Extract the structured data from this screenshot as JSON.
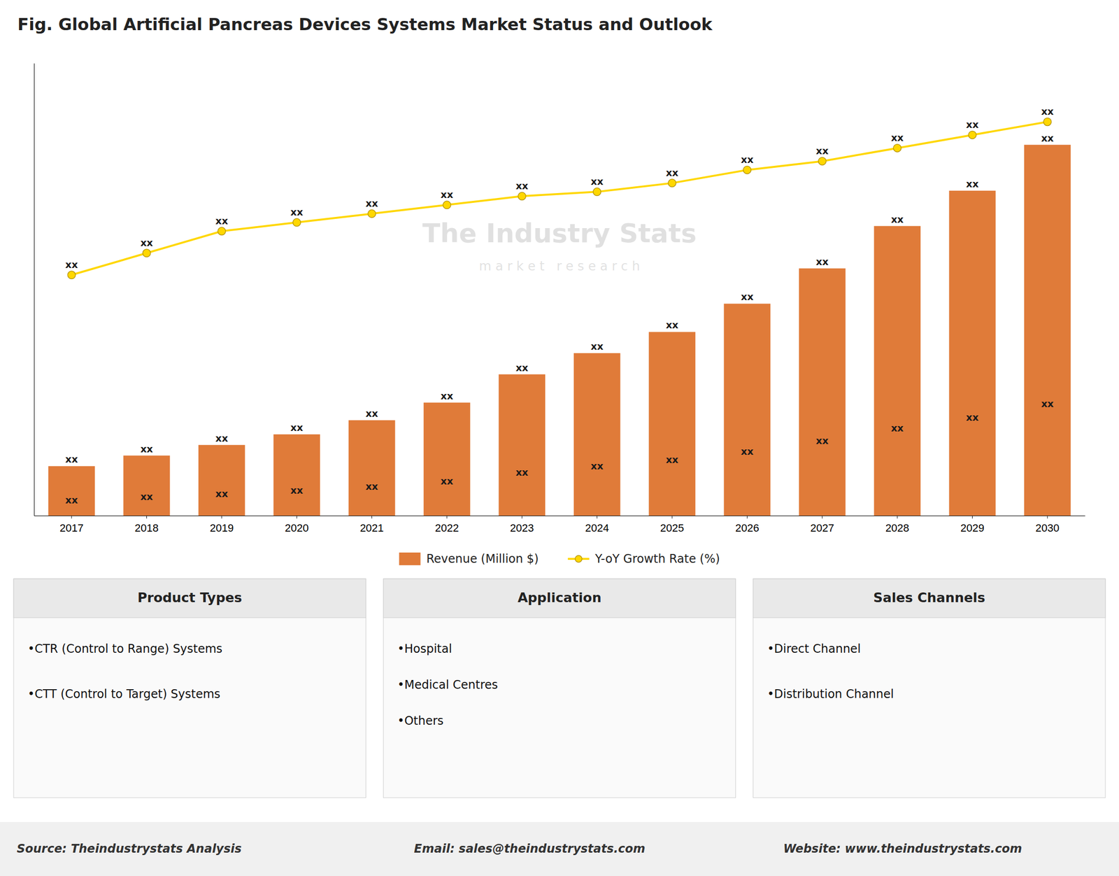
{
  "chart_data": {
    "type": "bar",
    "title": "Fig. Global Artificial Pancreas Devices Systems Market Status and Outlook",
    "categories": [
      "2017",
      "2018",
      "2019",
      "2020",
      "2021",
      "2022",
      "2023",
      "2024",
      "2025",
      "2026",
      "2027",
      "2028",
      "2029",
      "2030"
    ],
    "series": [
      {
        "name": "Revenue (Million $)",
        "type": "bar",
        "color": "#E07B39",
        "values": [
          14,
          17,
          20,
          23,
          27,
          32,
          40,
          46,
          52,
          60,
          70,
          82,
          92,
          105
        ],
        "value_labels": [
          "xx",
          "xx",
          "xx",
          "xx",
          "xx",
          "xx",
          "xx",
          "xx",
          "xx",
          "xx",
          "xx",
          "xx",
          "xx",
          "xx"
        ],
        "inner_labels": [
          "xx",
          "xx",
          "xx",
          "xx",
          "xx",
          "xx",
          "xx",
          "xx",
          "xx",
          "xx",
          "xx",
          "xx",
          "xx",
          "xx"
        ]
      },
      {
        "name": "Y-oY Growth Rate (%)",
        "type": "line",
        "color": "#FFD700",
        "marker": "circle",
        "line_style": "solid",
        "values": [
          68.145,
          74.34,
          80.535,
          83.013,
          85.491,
          87.969,
          90.447,
          91.686,
          94.164,
          97.881,
          100.359,
          104.076,
          107.793,
          111.51
        ],
        "value_labels": [
          "xx",
          "xx",
          "xx",
          "xx",
          "xx",
          "xx",
          "xx",
          "xx",
          "xx",
          "xx",
          "xx",
          "xx",
          "xx",
          "xx"
        ]
      }
    ],
    "ylim": [
      0,
      128.1
    ],
    "yticks": [],
    "grid": false,
    "legend": "bottom",
    "data_labels": true,
    "tick_labels": "x",
    "watermark": {
      "text": "The Industry Stats",
      "subtext": "m a r k e t   r e s e a r c h"
    },
    "panels": [
      {
        "title": "Product Types",
        "items": [
          "•CTR (Control to Range) Systems",
          "•CTT (Control to Target) Systems"
        ]
      },
      {
        "title": "Application",
        "items": [
          "•Hospital",
          "•Medical Centres",
          "•Others"
        ]
      },
      {
        "title": "Sales Channels",
        "items": [
          "•Direct Channel",
          "•Distribution Channel"
        ]
      }
    ],
    "footer": [
      "Source: Theindustrystats Analysis",
      "Email: sales@theindustrystats.com",
      "Website: www.theindustrystats.com"
    ]
  }
}
